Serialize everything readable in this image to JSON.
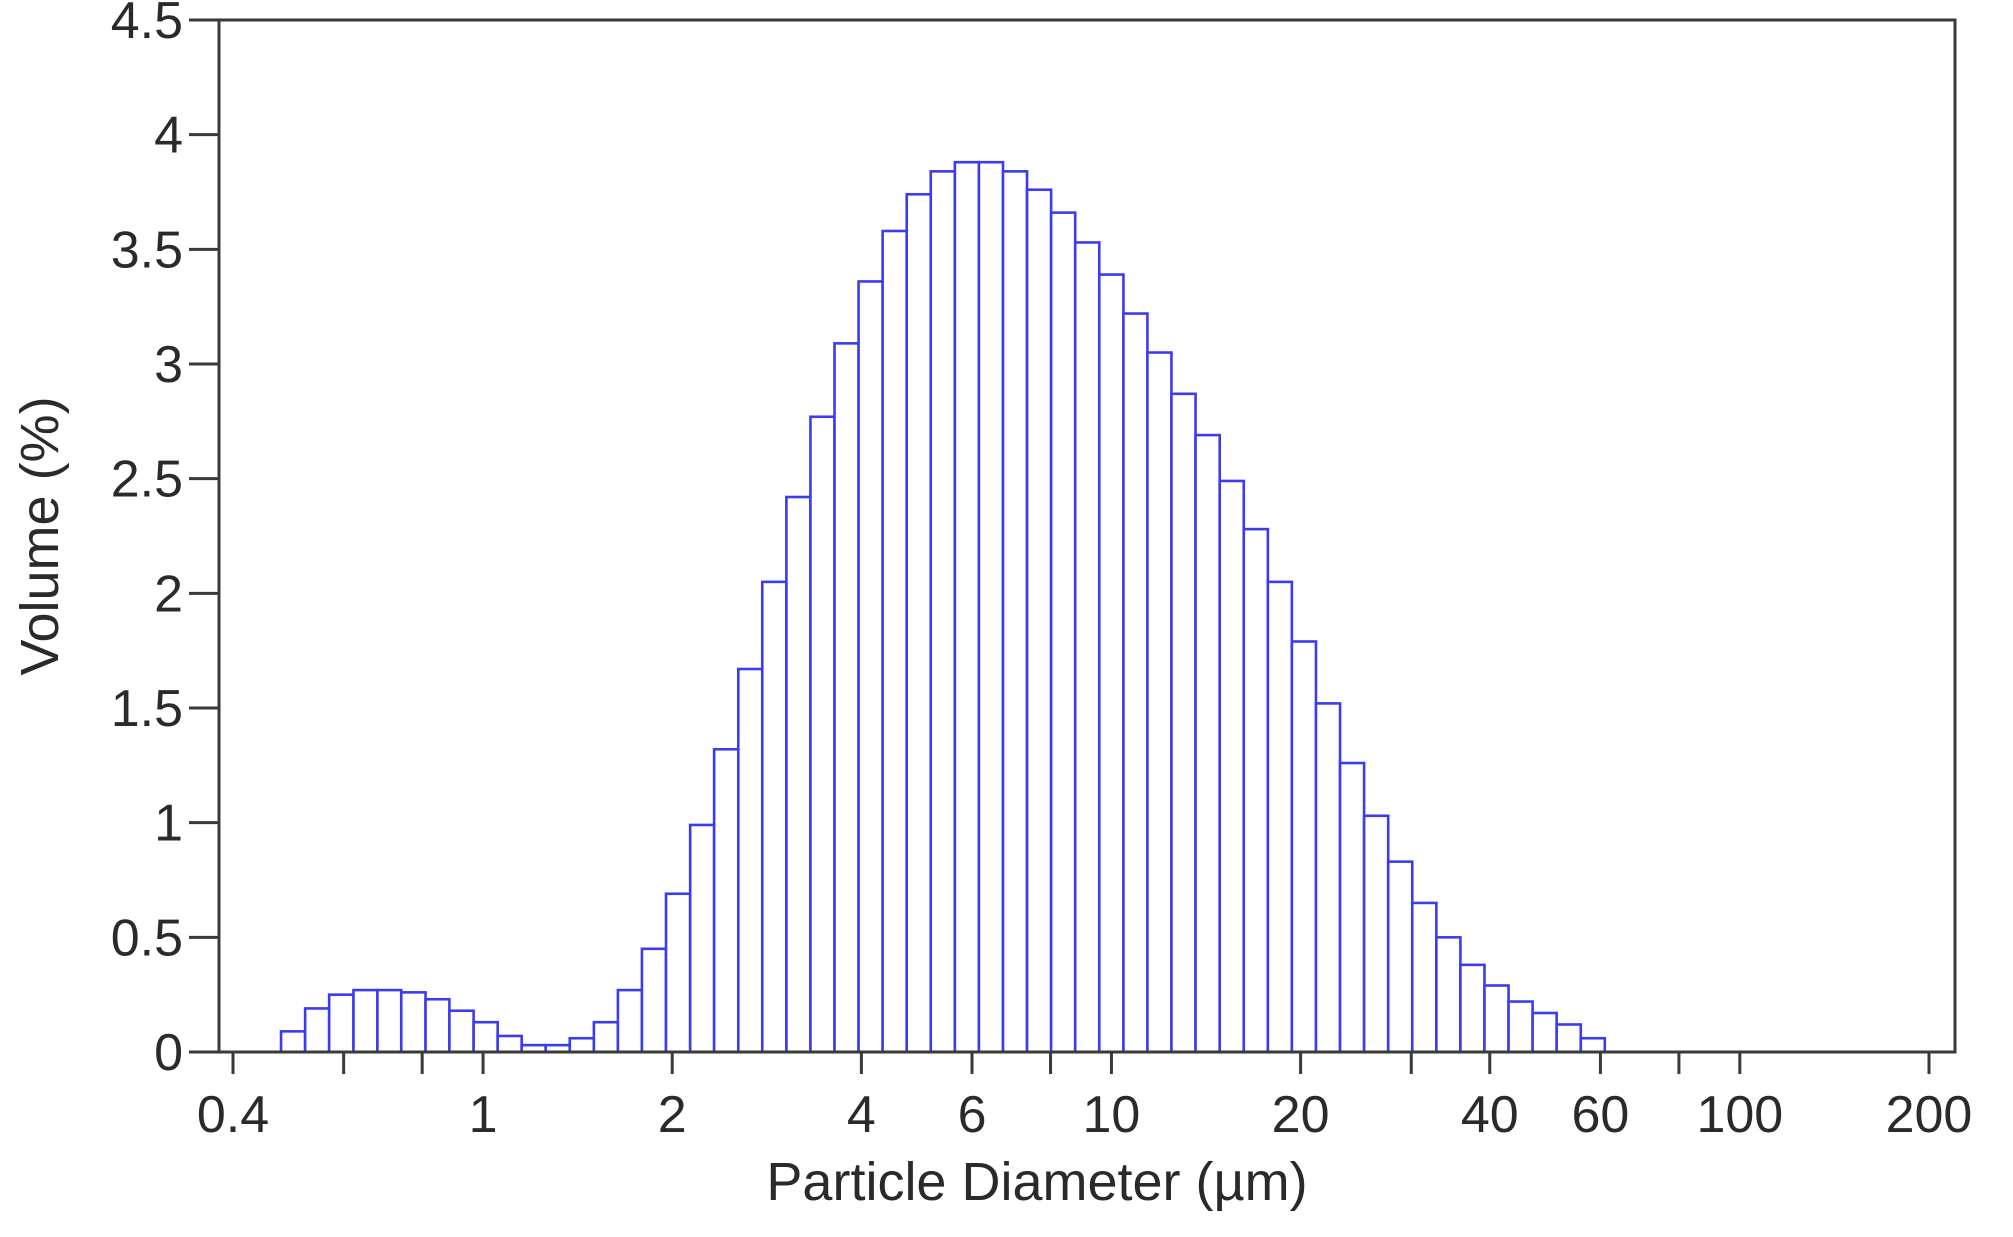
{
  "chart_data": {
    "type": "bar",
    "xlabel": "Particle Diameter (µm)",
    "ylabel": "Volume (%)",
    "x_scale": "log",
    "xlim": [
      0.38,
      220
    ],
    "ylim": [
      0,
      4.5
    ],
    "x_ticks": [
      {
        "value": 0.4,
        "label": "0.4"
      },
      {
        "value": 1,
        "label": "1"
      },
      {
        "value": 2,
        "label": "2"
      },
      {
        "value": 4,
        "label": "4"
      },
      {
        "value": 6,
        "label": "6"
      },
      {
        "value": 10,
        "label": "10"
      },
      {
        "value": 20,
        "label": "20"
      },
      {
        "value": 40,
        "label": "40"
      },
      {
        "value": 60,
        "label": "60"
      },
      {
        "value": 100,
        "label": "100"
      },
      {
        "value": 200,
        "label": "200"
      }
    ],
    "x_minor_ticks": [
      0.8,
      80,
      0.6,
      8,
      30
    ],
    "y_ticks": [
      {
        "value": 0,
        "label": "0"
      },
      {
        "value": 0.5,
        "label": "0.5"
      },
      {
        "value": 1,
        "label": "1"
      },
      {
        "value": 1.5,
        "label": "1.5"
      },
      {
        "value": 2,
        "label": "2"
      },
      {
        "value": 2.5,
        "label": "2.5"
      },
      {
        "value": 3,
        "label": "3"
      },
      {
        "value": 3.5,
        "label": "3.5"
      },
      {
        "value": 4,
        "label": "4"
      },
      {
        "value": 4.5,
        "label": "4.5"
      }
    ],
    "grid": false,
    "bar_color": "#3b3bef",
    "bar_fill": "#ffffff",
    "bins": {
      "edges": [
        0.4,
        0.437,
        0.477,
        0.521,
        0.569,
        0.622,
        0.679,
        0.741,
        0.81,
        0.884,
        0.966,
        1.055,
        1.152,
        1.258,
        1.374,
        1.501,
        1.639,
        1.79,
        1.955,
        2.136,
        2.332,
        2.548,
        2.782,
        3.039,
        3.319,
        3.625,
        3.959,
        4.324,
        4.723,
        5.158,
        5.634,
        6.153,
        6.721,
        7.34,
        8.017,
        8.757,
        9.564,
        10.45,
        11.41,
        12.46,
        13.61,
        14.87,
        16.24,
        17.74,
        19.37,
        21.16,
        23.11,
        25.24,
        27.57,
        30.11,
        32.89,
        35.92,
        39.23,
        42.85,
        46.8,
        51.11,
        55.83,
        60.97,
        66.59,
        72.73,
        79.44,
        86.76,
        94.76,
        103.5,
        113.0,
        123.5,
        134.8,
        147.3,
        160.9,
        175.7,
        191.9,
        209.6
      ],
      "values": [
        0.0,
        0.0,
        0.09,
        0.19,
        0.25,
        0.27,
        0.27,
        0.26,
        0.23,
        0.18,
        0.13,
        0.07,
        0.03,
        0.03,
        0.06,
        0.13,
        0.27,
        0.45,
        0.69,
        0.99,
        1.32,
        1.67,
        2.05,
        2.42,
        2.77,
        3.09,
        3.36,
        3.58,
        3.74,
        3.84,
        3.88,
        3.88,
        3.84,
        3.76,
        3.66,
        3.53,
        3.39,
        3.22,
        3.05,
        2.87,
        2.69,
        2.49,
        2.28,
        2.05,
        1.79,
        1.52,
        1.26,
        1.03,
        0.83,
        0.65,
        0.5,
        0.38,
        0.29,
        0.22,
        0.17,
        0.12,
        0.06,
        0.0,
        0.0,
        0.0,
        0.0,
        0.0,
        0.0,
        0.0,
        0.0,
        0.0,
        0.0,
        0.0,
        0.0,
        0.0,
        0.0
      ]
    }
  }
}
